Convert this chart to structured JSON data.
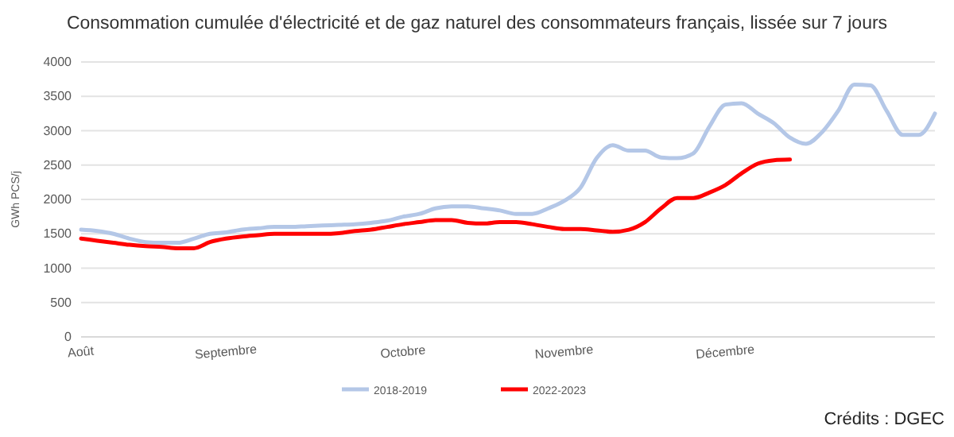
{
  "chart_data": {
    "type": "line",
    "title": "Consommation cumulée d'électricité et de gaz naturel des consommateurs français, lissée sur 7 jours",
    "ylabel": "GWh PCS/j",
    "categories": [
      "Août",
      null,
      null,
      null,
      null,
      null,
      null,
      null,
      null,
      "Septembre",
      null,
      null,
      null,
      null,
      null,
      null,
      null,
      null,
      null,
      null,
      "Octobre",
      null,
      null,
      null,
      null,
      null,
      null,
      null,
      null,
      null,
      "Novembre",
      null,
      null,
      null,
      null,
      null,
      null,
      null,
      null,
      null,
      "Décembre",
      null,
      null,
      null,
      null,
      null,
      null,
      null,
      null,
      null,
      null,
      null,
      null,
      null
    ],
    "series": [
      {
        "name": "2018-2019",
        "color": "#b4c7e7",
        "values": [
          1560,
          1540,
          1500,
          1430,
          1380,
          1370,
          1370,
          1430,
          1500,
          1520,
          1560,
          1580,
          1600,
          1600,
          1610,
          1620,
          1630,
          1640,
          1660,
          1690,
          1750,
          1790,
          1870,
          1900,
          1900,
          1870,
          1840,
          1790,
          1790,
          1870,
          1980,
          2170,
          2600,
          2790,
          2710,
          2710,
          2610,
          2600,
          2670,
          3060,
          3380,
          3400,
          3250,
          3110,
          2900,
          2810,
          2980,
          3290,
          3670,
          3660,
          3290,
          2940,
          2940,
          3250
        ]
      },
      {
        "name": "2022-2023",
        "color": "#ff0000",
        "values": [
          1430,
          1400,
          1370,
          1340,
          1320,
          1310,
          1290,
          1290,
          1380,
          1430,
          1460,
          1480,
          1500,
          1500,
          1500,
          1500,
          1510,
          1540,
          1560,
          1600,
          1640,
          1670,
          1700,
          1700,
          1660,
          1650,
          1670,
          1670,
          1640,
          1600,
          1570,
          1570,
          1550,
          1530,
          1560,
          1670,
          1870,
          2020,
          2020,
          2100,
          2210,
          2380,
          2520,
          2570,
          2580,
          null,
          null,
          null,
          null,
          null,
          null,
          null,
          null,
          null
        ]
      }
    ],
    "ylim": [
      0,
      4000
    ],
    "yticks": [
      0,
      500,
      1000,
      1500,
      2000,
      2500,
      3000,
      3500,
      4000
    ],
    "grid": "y",
    "legend": "bottom",
    "marker": "none",
    "line_style": "solid",
    "annotations": [
      "Crédits : DGEC"
    ]
  }
}
